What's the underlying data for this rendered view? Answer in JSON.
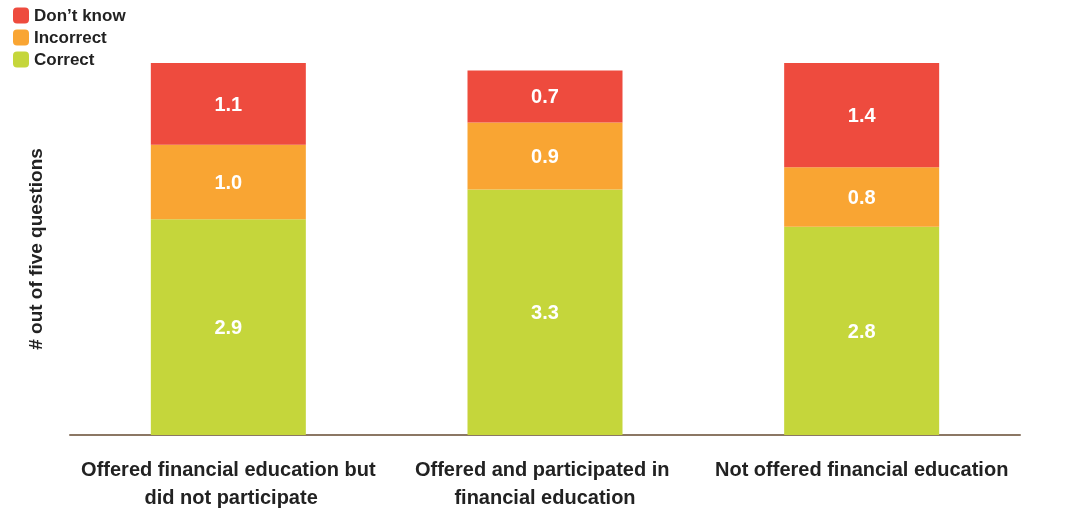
{
  "chart_data": {
    "type": "bar",
    "stacked": true,
    "ylabel": "# out of five questions",
    "legend": "top left",
    "grid": false,
    "categories": [
      "Offered financial education but did not participate",
      "Offered and participated in financial education",
      "Not offered financial education"
    ],
    "series": [
      {
        "name": "Correct",
        "color": "#c5d63b",
        "values": [
          2.9,
          3.3,
          2.8
        ],
        "value_labels": [
          "2.9",
          "3.3",
          "2.8"
        ]
      },
      {
        "name": "Incorrect",
        "color": "#f9a533",
        "values": [
          1.0,
          0.9,
          0.8
        ],
        "value_labels": [
          "1.0",
          "0.9",
          "0.8"
        ]
      },
      {
        "name": "Don’t know",
        "color": "#ee4b3e",
        "values": [
          1.1,
          0.7,
          1.4
        ],
        "value_labels": [
          "1.1",
          "0.7",
          "1.4"
        ]
      }
    ]
  }
}
